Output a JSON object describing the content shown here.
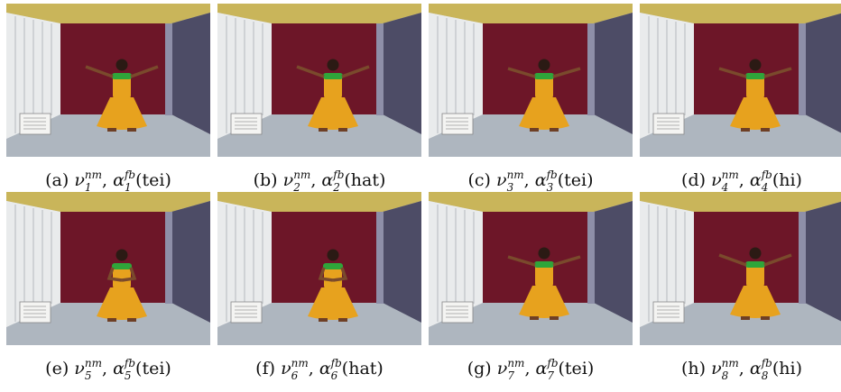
{
  "figure": {
    "panels": [
      {
        "label": "(a)",
        "nu": "ν",
        "nu_sup": "nm",
        "nu_sub": "1",
        "alpha": "α",
        "alpha_sup": "fb",
        "alpha_sub": "1",
        "word": "(tei)",
        "pose": "arms-wide-deep"
      },
      {
        "label": "(b)",
        "nu": "ν",
        "nu_sup": "nm",
        "nu_sub": "2",
        "alpha": "α",
        "alpha_sup": "fb",
        "alpha_sub": "2",
        "word": "(hat)",
        "pose": "arms-wide-deep"
      },
      {
        "label": "(c)",
        "nu": "ν",
        "nu_sup": "nm",
        "nu_sub": "3",
        "alpha": "α",
        "alpha_sup": "fb",
        "alpha_sub": "3",
        "word": "(tei)",
        "pose": "arms-wide-up"
      },
      {
        "label": "(d)",
        "nu": "ν",
        "nu_sup": "nm",
        "nu_sub": "4",
        "alpha": "α",
        "alpha_sup": "fb",
        "alpha_sub": "4",
        "word": "(hi)",
        "pose": "arms-wide-up"
      },
      {
        "label": "(e)",
        "nu": "ν",
        "nu_sup": "nm",
        "nu_sub": "5",
        "alpha": "α",
        "alpha_sup": "fb",
        "alpha_sub": "5",
        "word": "(tei)",
        "pose": "hands-front"
      },
      {
        "label": "(f)",
        "nu": "ν",
        "nu_sup": "nm",
        "nu_sub": "6",
        "alpha": "α",
        "alpha_sup": "fb",
        "alpha_sub": "6",
        "word": "(hat)",
        "pose": "hands-front"
      },
      {
        "label": "(g)",
        "nu": "ν",
        "nu_sup": "nm",
        "nu_sub": "7",
        "alpha": "α",
        "alpha_sup": "fb",
        "alpha_sub": "7",
        "word": "(tei)",
        "pose": "arms-wide-up"
      },
      {
        "label": "(h)",
        "nu": "ν",
        "nu_sup": "nm",
        "nu_sub": "8",
        "alpha": "α",
        "alpha_sup": "fb",
        "alpha_sub": "8",
        "word": "(hi)",
        "pose": "arms-wide-deep"
      }
    ],
    "colors": {
      "ceiling": "#c9b55a",
      "left_wall": "#e9ebec",
      "backdrop": "#6d1628",
      "right_wall": "#4d4c66",
      "floor": "#aeb6bf",
      "saree": "#e7a21e",
      "blouse": "#2fa53a"
    }
  }
}
